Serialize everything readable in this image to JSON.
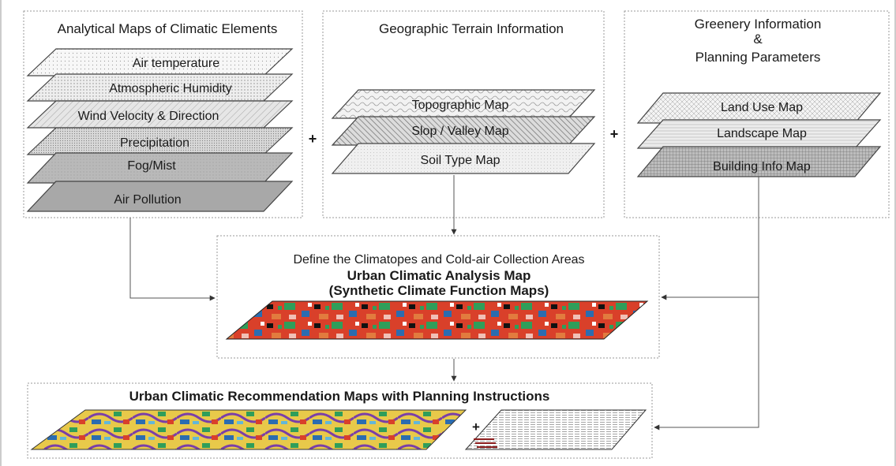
{
  "panels": {
    "climatic": {
      "title": "Analytical Maps of Climatic Elements",
      "layers": [
        "Air temperature",
        "Atmospheric Humidity",
        "Wind Velocity & Direction",
        "Precipitation",
        "Fog/Mist",
        "Air Pollution"
      ]
    },
    "terrain": {
      "title": "Geographic Terrain Information",
      "layers": [
        "Topographic Map",
        "Slop / Valley Map",
        "Soil Type Map"
      ]
    },
    "greenery": {
      "title_line1": "Greenery Information",
      "title_line2": "&",
      "title_line3": "Planning Parameters",
      "layers": [
        "Land Use Map",
        "Landscape Map",
        "Building Info Map"
      ]
    }
  },
  "operators": {
    "plus": "+"
  },
  "analysis": {
    "subtitle": "Define the Climatopes and Cold-air Collection Areas",
    "title": "Urban Climatic Analysis Map",
    "title2": "(Synthetic Climate Function Maps)"
  },
  "recommendation": {
    "title": "Urban Climatic Recommendation Maps with Planning Instructions"
  },
  "colors": {
    "line": "#555555",
    "box_border": "#9a9a9a",
    "map_red": "#d9402a",
    "map_green": "#2f9e5a",
    "map_blue": "#2b6cb0",
    "map_yellow": "#e8c94a",
    "map_purple": "#7a3fa8"
  }
}
